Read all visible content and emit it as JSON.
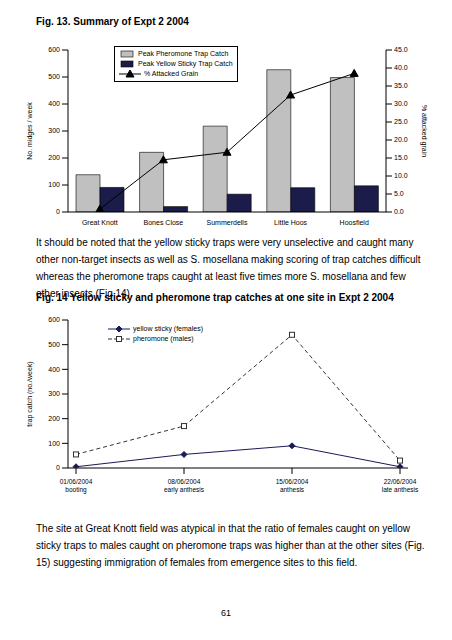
{
  "chart_data": [
    {
      "type": "bar",
      "title": "Fig. 13. Summary of Expt 2 2004",
      "categories": [
        "Great Knott",
        "Bones Close",
        "Summerdells",
        "Little Hoos",
        "Hoosfield"
      ],
      "series": [
        {
          "name": "Peak Pheromone Trap Catch",
          "type": "bar",
          "color": "#c0c0c0",
          "values": [
            138,
            221,
            318,
            527,
            498
          ]
        },
        {
          "name": "Peak Yellow Sticky Trap Catch",
          "type": "bar",
          "color": "#1c1c4a",
          "values": [
            91,
            20,
            66,
            90,
            97
          ]
        },
        {
          "name": "% Attacked Grain",
          "type": "line",
          "color": "#000000",
          "marker": "triangle",
          "axis": "y2",
          "values": [
            0.8,
            14.5,
            16.6,
            32.5,
            38.5
          ]
        }
      ],
      "ylabel": "No. midges / week",
      "y2label": "% attacked grain",
      "ylim": [
        0,
        600
      ],
      "yticks": [
        0,
        100,
        200,
        300,
        400,
        500,
        600
      ],
      "y2lim": [
        0,
        45
      ],
      "y2ticks": [
        {
          "value": 0,
          "label": "0.0"
        },
        {
          "value": 5,
          "label": "5.0"
        },
        {
          "value": 10,
          "label": "10.0"
        },
        {
          "value": 15,
          "label": "15.0"
        },
        {
          "value": 20,
          "label": "20.0"
        },
        {
          "value": 25,
          "label": "25.0"
        },
        {
          "value": 30,
          "label": "30.0"
        },
        {
          "value": 35,
          "label": "35.0"
        },
        {
          "value": 40,
          "label": "40.0"
        },
        {
          "value": 45,
          "label": "45.0"
        }
      ],
      "legend": "upper left"
    },
    {
      "type": "line",
      "title": "Fig. 14 Yellow sticky and pheromone trap catches at one site in Expt 2 2004",
      "categories": [
        "01/06/2004 booting",
        "08/06/2004 early anthesis",
        "15/06/2004 anthesis",
        "22/06/2004 late anthesis"
      ],
      "series": [
        {
          "name": "yellow sticky (females)",
          "color": "#1a1a5a",
          "marker": "diamond",
          "line_style": "solid",
          "values": [
            5,
            55,
            90,
            5
          ]
        },
        {
          "name": "pheromone (males)",
          "color": "#333333",
          "marker": "square",
          "line_style": "dashed",
          "values": [
            55,
            170,
            540,
            30
          ]
        }
      ],
      "ylabel": "trap catch (no./week)",
      "ylim": [
        0,
        600
      ],
      "yticks": [
        0,
        100,
        200,
        300,
        400,
        500,
        600
      ],
      "legend": "upper left"
    }
  ],
  "text": {
    "paragraphs": [
      "It should be noted that the yellow sticky traps were very unselective and caught many other non-target insects as well as S. mosellana making scoring of trap catches difficult whereas the pheromone traps caught at least five times more S. mosellana and few other insects (Fig 14).",
      "The site at Great Knott field was atypical in that the ratio of females caught on yellow sticky traps to males caught on pheromone traps was higher than at the other sites (Fig. 15) suggesting immigration of females from emergence sites to this field."
    ],
    "page_number": "61"
  }
}
